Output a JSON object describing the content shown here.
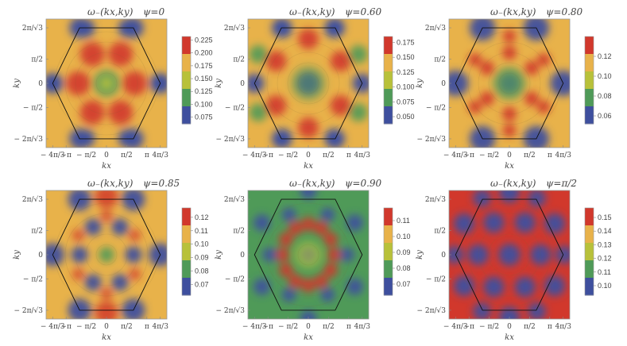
{
  "chart_data": [
    {
      "type": "heatmap",
      "title": "ω₋(kx,ky)",
      "psi_label": "ψ=0",
      "psi": 0,
      "xlabel": "kx",
      "ylabel": "ky",
      "xticks": [
        "− 4π/3",
        "−π",
        "− π/2",
        "0",
        "π/2",
        "π",
        "4π/3"
      ],
      "yticks": [
        "2π/√3",
        "π/2",
        "0",
        "− π/2",
        "− 2π/√3"
      ],
      "colorbar_ticks": [
        "0.225",
        "0.200",
        "0.175",
        "0.150",
        "0.125",
        "0.100",
        "0.075"
      ],
      "colorbar_range": [
        0.062,
        0.232
      ],
      "low_at": "centers of the six hexagon edges and near the hexagon vertices",
      "high_at": "six lobes between edge midpoints"
    },
    {
      "type": "heatmap",
      "title": "ω₋(kx,ky)",
      "psi_label": "ψ=0.60",
      "psi": 0.6,
      "xlabel": "kx",
      "ylabel": "ky",
      "xticks": [
        "− 4π/3",
        "−π",
        "− π/2",
        "0",
        "π/2",
        "π",
        "4π/3"
      ],
      "yticks": [
        "2π/√3",
        "π/2",
        "0",
        "− π/2",
        "− 2π/√3"
      ],
      "colorbar_ticks": [
        "0.175",
        "0.150",
        "0.125",
        "0.100",
        "0.075",
        "0.050"
      ],
      "colorbar_range": [
        0.038,
        0.185
      ]
    },
    {
      "type": "heatmap",
      "title": "ω₋(kx,ky)",
      "psi_label": "ψ=0.80",
      "psi": 0.8,
      "xlabel": "kx",
      "ylabel": "ky",
      "xticks": [
        "− 4π/3",
        "−π",
        "− π/2",
        "0",
        "π/2",
        "π",
        "4π/3"
      ],
      "yticks": [
        "2π/√3",
        "π/2",
        "0",
        "− π/2",
        "− 2π/√3"
      ],
      "colorbar_ticks": [
        "0.12",
        "0.10",
        "0.08",
        "0.06"
      ],
      "colorbar_range": [
        0.052,
        0.14
      ]
    },
    {
      "type": "heatmap",
      "title": "ω₋(kx,ky)",
      "psi_label": "ψ=0.85",
      "psi": 0.85,
      "xlabel": "kx",
      "ylabel": "ky",
      "xticks": [
        "− 4π/3",
        "−π",
        "− π/2",
        "0",
        "π/2",
        "π",
        "4π/3"
      ],
      "yticks": [
        "2π/√3",
        "π/2",
        "0",
        "− π/2",
        "− 2π/√3"
      ],
      "colorbar_ticks": [
        "0.12",
        "0.11",
        "0.10",
        "0.09",
        "0.08",
        "0.07"
      ],
      "colorbar_range": [
        0.062,
        0.127
      ]
    },
    {
      "type": "heatmap",
      "title": "ω₋(kx,ky)",
      "psi_label": "ψ=0.90",
      "psi": 0.9,
      "xlabel": "kx",
      "ylabel": "ky",
      "xticks": [
        "− 4π/3",
        "−π",
        "− π/2",
        "0",
        "π/2",
        "π",
        "4π/3"
      ],
      "yticks": [
        "2π/√3",
        "π/2",
        "0",
        "− π/2",
        "− 2π/√3"
      ],
      "colorbar_ticks": [
        "0.11",
        "0.10",
        "0.09",
        "0.08",
        "0.07"
      ],
      "colorbar_range": [
        0.063,
        0.118
      ]
    },
    {
      "type": "heatmap",
      "title": "ω₋(kx,ky)",
      "psi_label": "ψ=π/2",
      "psi": 1.5708,
      "xlabel": "kx",
      "ylabel": "ky",
      "xticks": [
        "− 4π/3",
        "−π",
        "− π/2",
        "0",
        "π/2",
        "π",
        "4π/3"
      ],
      "yticks": [
        "2π/√3",
        "π/2",
        "0",
        "− π/2",
        "− 2π/√3"
      ],
      "colorbar_ticks": [
        "0.15",
        "0.14",
        "0.13",
        "0.12",
        "0.11",
        "0.10"
      ],
      "colorbar_range": [
        0.093,
        0.157
      ]
    }
  ],
  "colors": {
    "low": "#3e4f9e",
    "mid_low": "#4f9a58",
    "mid": "#b8c13a",
    "mid_high": "#e8b24a",
    "high": "#d1382c",
    "hexagon": "#111111",
    "frame": "#9a9a9a"
  }
}
